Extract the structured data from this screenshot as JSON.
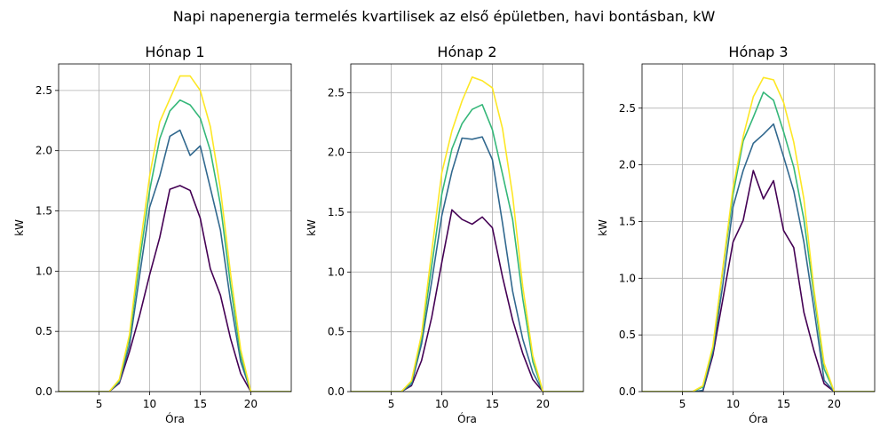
{
  "figure": {
    "title": "Napi napenergia termelés kvartilisek az első épületben, havi bontásban, kW"
  },
  "chart_data": [
    {
      "type": "line",
      "title": "Hónap 1",
      "xlabel": "Óra",
      "ylabel": "kW",
      "xlim": [
        1,
        24
      ],
      "ylim": [
        0,
        2.72
      ],
      "xticks": [
        5,
        10,
        15,
        20
      ],
      "yticks": [
        0.0,
        0.5,
        1.0,
        1.5,
        2.0,
        2.5
      ],
      "grid": true,
      "x": [
        1,
        2,
        3,
        4,
        5,
        6,
        7,
        8,
        9,
        10,
        11,
        12,
        13,
        14,
        15,
        16,
        17,
        18,
        19,
        20,
        21,
        22,
        23,
        24
      ],
      "series": [
        {
          "color": "#440154",
          "values": [
            0,
            0,
            0,
            0,
            0,
            0,
            0.07,
            0.33,
            0.63,
            0.97,
            1.28,
            1.68,
            1.71,
            1.67,
            1.44,
            1.02,
            0.8,
            0.44,
            0.15,
            0,
            0,
            0,
            0,
            0
          ]
        },
        {
          "color": "#31688e",
          "values": [
            0,
            0,
            0,
            0,
            0,
            0,
            0.08,
            0.38,
            0.96,
            1.53,
            1.79,
            2.12,
            2.17,
            1.96,
            2.04,
            1.69,
            1.34,
            0.75,
            0.25,
            0,
            0,
            0,
            0,
            0
          ]
        },
        {
          "color": "#35b779",
          "values": [
            0,
            0,
            0,
            0,
            0,
            0,
            0.09,
            0.44,
            1.08,
            1.67,
            2.1,
            2.33,
            2.42,
            2.38,
            2.27,
            2.0,
            1.55,
            0.88,
            0.3,
            0,
            0,
            0,
            0,
            0
          ]
        },
        {
          "color": "#fde725",
          "values": [
            0,
            0,
            0,
            0,
            0,
            0,
            0.1,
            0.47,
            1.17,
            1.79,
            2.24,
            2.43,
            2.62,
            2.62,
            2.5,
            2.2,
            1.68,
            0.98,
            0.35,
            0,
            0,
            0,
            0,
            0
          ]
        }
      ]
    },
    {
      "type": "line",
      "title": "Hónap 2",
      "xlabel": "Óra",
      "ylabel": "kW",
      "xlim": [
        1,
        24
      ],
      "ylim": [
        0,
        2.74
      ],
      "xticks": [
        5,
        10,
        15,
        20
      ],
      "yticks": [
        0.0,
        0.5,
        1.0,
        1.5,
        2.0,
        2.5
      ],
      "grid": true,
      "x": [
        1,
        2,
        3,
        4,
        5,
        6,
        7,
        8,
        9,
        10,
        11,
        12,
        13,
        14,
        15,
        16,
        17,
        18,
        19,
        20,
        21,
        22,
        23,
        24
      ],
      "series": [
        {
          "color": "#440154",
          "values": [
            0,
            0,
            0,
            0,
            0,
            0,
            0.05,
            0.26,
            0.62,
            1.08,
            1.52,
            1.44,
            1.4,
            1.46,
            1.37,
            0.96,
            0.6,
            0.32,
            0.1,
            0,
            0,
            0,
            0,
            0
          ]
        },
        {
          "color": "#31688e",
          "values": [
            0,
            0,
            0,
            0,
            0,
            0,
            0.06,
            0.4,
            0.92,
            1.47,
            1.84,
            2.12,
            2.11,
            2.13,
            1.94,
            1.41,
            0.84,
            0.44,
            0.16,
            0,
            0,
            0,
            0,
            0
          ]
        },
        {
          "color": "#35b779",
          "values": [
            0,
            0,
            0,
            0,
            0,
            0,
            0.08,
            0.45,
            1.05,
            1.65,
            2.03,
            2.24,
            2.36,
            2.4,
            2.19,
            1.82,
            1.44,
            0.78,
            0.25,
            0,
            0,
            0,
            0,
            0
          ]
        },
        {
          "color": "#fde725",
          "values": [
            0,
            0,
            0,
            0,
            0,
            0,
            0.09,
            0.48,
            1.17,
            1.83,
            2.18,
            2.43,
            2.63,
            2.6,
            2.54,
            2.2,
            1.64,
            0.88,
            0.3,
            0,
            0,
            0,
            0,
            0
          ]
        }
      ]
    },
    {
      "type": "line",
      "title": "Hónap 3",
      "xlabel": "Óra",
      "ylabel": "kW",
      "xlim": [
        1,
        24
      ],
      "ylim": [
        0,
        2.89
      ],
      "xticks": [
        5,
        10,
        15,
        20
      ],
      "yticks": [
        0.0,
        0.5,
        1.0,
        1.5,
        2.0,
        2.5
      ],
      "grid": true,
      "x": [
        1,
        2,
        3,
        4,
        5,
        6,
        7,
        8,
        9,
        10,
        11,
        12,
        13,
        14,
        15,
        16,
        17,
        18,
        19,
        20,
        21,
        22,
        23,
        24
      ],
      "series": [
        {
          "color": "#440154",
          "values": [
            0,
            0,
            0,
            0,
            0,
            0,
            0,
            0.32,
            0.82,
            1.32,
            1.51,
            1.95,
            1.7,
            1.86,
            1.42,
            1.27,
            0.7,
            0.36,
            0.07,
            0,
            0,
            0,
            0,
            0
          ]
        },
        {
          "color": "#31688e",
          "values": [
            0,
            0,
            0,
            0,
            0,
            0,
            0.01,
            0.35,
            0.95,
            1.63,
            1.95,
            2.19,
            2.27,
            2.36,
            2.07,
            1.77,
            1.32,
            0.73,
            0.1,
            0,
            0,
            0,
            0,
            0
          ]
        },
        {
          "color": "#35b779",
          "values": [
            0,
            0,
            0,
            0,
            0,
            0,
            0.04,
            0.38,
            1.08,
            1.74,
            2.21,
            2.42,
            2.64,
            2.57,
            2.29,
            1.98,
            1.52,
            0.85,
            0.2,
            0,
            0,
            0,
            0,
            0
          ]
        },
        {
          "color": "#fde725",
          "values": [
            0,
            0,
            0,
            0,
            0,
            0,
            0.05,
            0.4,
            1.1,
            1.8,
            2.25,
            2.6,
            2.77,
            2.75,
            2.55,
            2.2,
            1.7,
            0.9,
            0.25,
            0,
            0,
            0,
            0,
            0
          ]
        }
      ]
    }
  ]
}
